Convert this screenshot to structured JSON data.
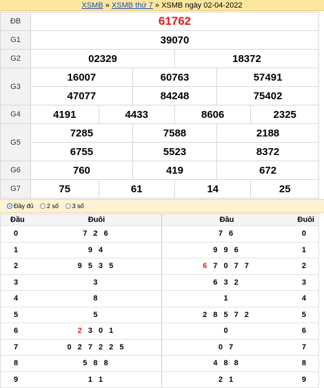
{
  "breadcrumb": {
    "link1": "XSMB",
    "sep1": " » ",
    "link2": "XSMB thứ 7",
    "sep2": " » ",
    "current": "XSMB ngày 02-04-2022"
  },
  "prizes": {
    "db": {
      "label": "ĐB",
      "values": [
        "61762"
      ]
    },
    "g1": {
      "label": "G1",
      "values": [
        "39070"
      ]
    },
    "g2": {
      "label": "G2",
      "values": [
        "02329",
        "18372"
      ]
    },
    "g3": {
      "label": "G3",
      "values": [
        "16007",
        "60763",
        "57491",
        "47077",
        "84248",
        "75402"
      ]
    },
    "g4": {
      "label": "G4",
      "values": [
        "4191",
        "4433",
        "8606",
        "2325"
      ]
    },
    "g5": {
      "label": "G5",
      "values": [
        "7285",
        "7588",
        "2188",
        "6755",
        "5523",
        "8372"
      ]
    },
    "g6": {
      "label": "G6",
      "values": [
        "760",
        "419",
        "672"
      ]
    },
    "g7": {
      "label": "G7",
      "values": [
        "75",
        "61",
        "14",
        "25"
      ]
    }
  },
  "options": [
    "Đầy đủ",
    "2 số",
    "3 số"
  ],
  "loto": {
    "headers": [
      "Đầu",
      "Đuôi",
      "Đầu",
      "Đuôi"
    ],
    "rows": [
      {
        "dau": "0",
        "duoi": "7 2 6",
        "dau2": "7 6",
        "duoi2": "0"
      },
      {
        "dau": "1",
        "duoi": "9 4",
        "dau2": "9 9 6",
        "duoi2": "1"
      },
      {
        "dau": "2",
        "duoi": "9 5 3 5",
        "dau2_hl": "6",
        "dau2": " 7 0 7 7",
        "duoi2": "2"
      },
      {
        "dau": "3",
        "duoi": "3",
        "dau2": "6 3 2",
        "duoi2": "3"
      },
      {
        "dau": "4",
        "duoi": "8",
        "dau2": "1",
        "duoi2": "4"
      },
      {
        "dau": "5",
        "duoi": "5",
        "dau2": "2 8 5 7 2",
        "duoi2": "5"
      },
      {
        "dau": "6",
        "duoi_hl": "2",
        "duoi": " 3 0 1",
        "dau2": "0",
        "duoi2": "6"
      },
      {
        "dau": "7",
        "duoi": "0 2 7 2 2 5",
        "dau2": "0 7",
        "duoi2": "7"
      },
      {
        "dau": "8",
        "duoi": "5 8 8",
        "dau2": "4 8 8",
        "duoi2": "8"
      },
      {
        "dau": "9",
        "duoi": "1 1",
        "dau2": "2 1",
        "duoi2": "9"
      }
    ]
  },
  "colors": {
    "special": "#e01b1b",
    "link": "#1a4fb3",
    "header_bg": "#fde7a0"
  }
}
